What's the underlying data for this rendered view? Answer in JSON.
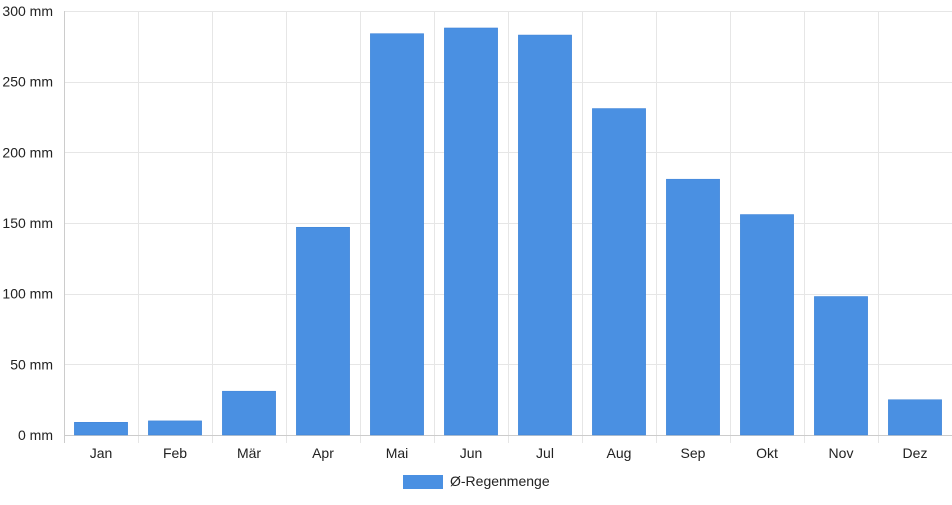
{
  "chart_data": {
    "type": "bar",
    "categories": [
      "Jan",
      "Feb",
      "Mär",
      "Apr",
      "Mai",
      "Jun",
      "Jul",
      "Aug",
      "Sep",
      "Okt",
      "Nov",
      "Dez"
    ],
    "series": [
      {
        "name": "Ø-Regenmenge",
        "values": [
          9,
          10,
          31,
          147,
          284,
          288,
          283,
          231,
          181,
          156,
          98,
          25
        ],
        "color": "#4a90e2"
      }
    ],
    "y_ticks": [
      {
        "value": 0,
        "label": "0 mm"
      },
      {
        "value": 50,
        "label": "50 mm"
      },
      {
        "value": 100,
        "label": "100 mm"
      },
      {
        "value": 150,
        "label": "150 mm"
      },
      {
        "value": 200,
        "label": "200 mm"
      },
      {
        "value": 250,
        "label": "250 mm"
      },
      {
        "value": 300,
        "label": "300 mm"
      }
    ],
    "ylim": [
      0,
      300
    ],
    "y_unit": "mm",
    "grid": true,
    "legend_position": "bottom-center",
    "grid_color": "#e6e6e6",
    "axis_color": "#cccccc",
    "text_color": "#222222"
  }
}
